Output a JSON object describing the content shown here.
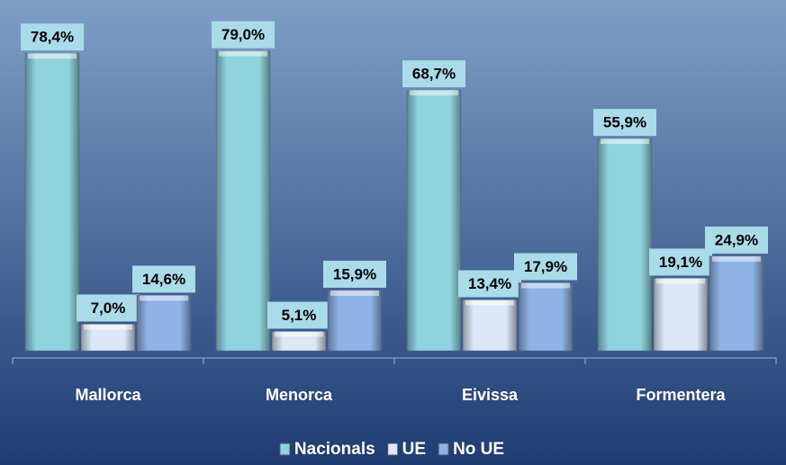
{
  "chart_data": {
    "type": "bar",
    "categories": [
      "Mallorca",
      "Menorca",
      "Eivissa",
      "Formentera"
    ],
    "series": [
      {
        "name": "Nacionals",
        "color": "#8fd3df",
        "values": [
          78.4,
          79.0,
          68.7,
          55.9
        ],
        "value_labels": [
          "78,4%",
          "79,0%",
          "68,7%",
          "55,9%"
        ]
      },
      {
        "name": "UE",
        "color": "#dce8f8",
        "values": [
          7.0,
          5.1,
          13.4,
          19.1
        ],
        "value_labels": [
          "7,0%",
          "5,1%",
          "13,4%",
          "19,1%"
        ]
      },
      {
        "name": "No UE",
        "color": "#8fb3e6",
        "values": [
          14.6,
          15.9,
          17.9,
          24.9
        ],
        "value_labels": [
          "14,6%",
          "15,9%",
          "17,9%",
          "24,9%"
        ]
      }
    ],
    "legend": "bottom"
  }
}
